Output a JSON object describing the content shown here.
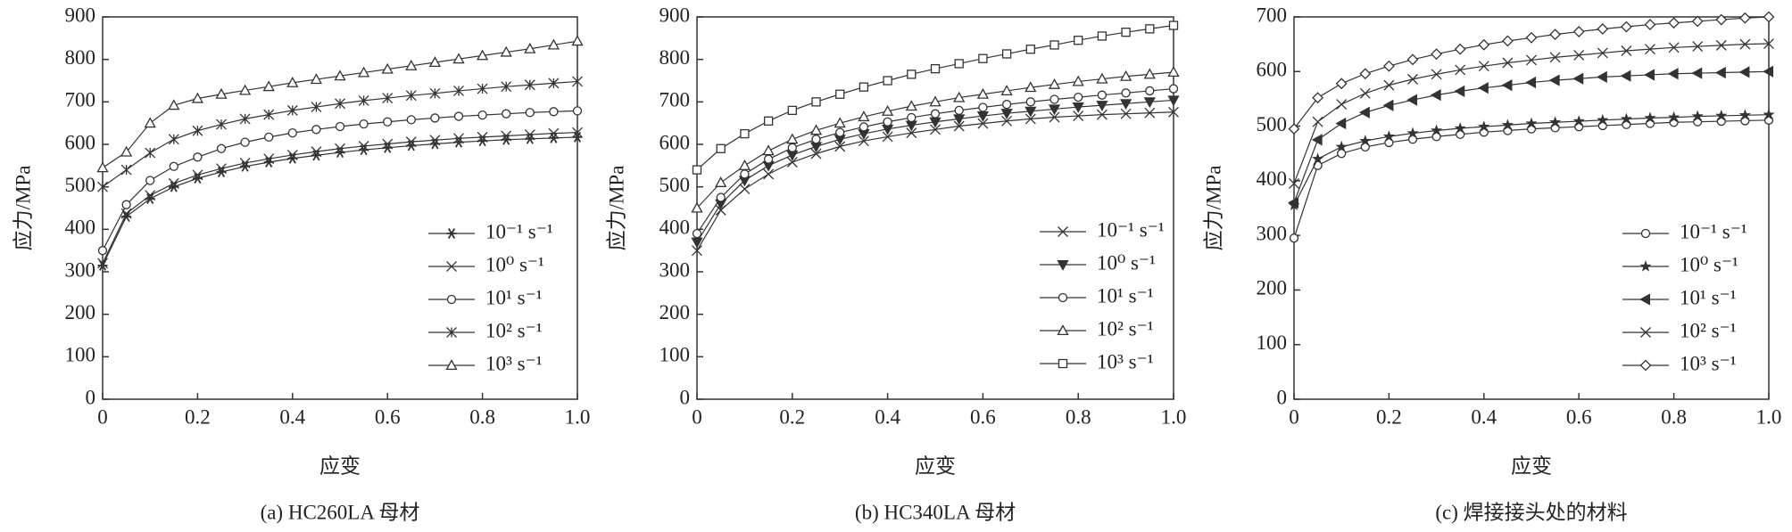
{
  "chart_data": [
    {
      "type": "line",
      "caption": "(a) HC260LA 母材",
      "x_label": "应变",
      "y_label": "应力/MPa",
      "x": [
        0,
        0.05,
        0.1,
        0.15,
        0.2,
        0.25,
        0.3,
        0.35,
        0.4,
        0.45,
        0.5,
        0.55,
        0.6,
        0.65,
        0.7,
        0.75,
        0.8,
        0.85,
        0.9,
        0.95,
        1
      ],
      "xlim": [
        0,
        1
      ],
      "xticks": [
        0,
        0.2,
        0.4,
        0.6,
        0.8,
        {
          "value": 1,
          "label": "1.0"
        }
      ],
      "ylim": [
        0,
        900
      ],
      "yticks": [
        0,
        100,
        200,
        300,
        400,
        500,
        600,
        700,
        800,
        900
      ],
      "series": [
        {
          "name": "10⁻¹ s⁻¹",
          "color": "#333333",
          "marker": "asterisk",
          "values": [
            315,
            430,
            472,
            500,
            520,
            535,
            548,
            558,
            567,
            574,
            581,
            587,
            592,
            597,
            601,
            605,
            608,
            611,
            613,
            615,
            617
          ]
        },
        {
          "name": "10⁰ s⁻¹",
          "color": "#333333",
          "marker": "x",
          "values": [
            320,
            437,
            480,
            508,
            528,
            543,
            556,
            566,
            575,
            583,
            590,
            596,
            601,
            606,
            610,
            614,
            617,
            620,
            623,
            626,
            628
          ]
        },
        {
          "name": "10¹ s⁻¹",
          "color": "#333333",
          "marker": "circle",
          "values": [
            350,
            458,
            515,
            548,
            570,
            590,
            605,
            617,
            627,
            635,
            642,
            648,
            653,
            658,
            662,
            666,
            669,
            672,
            675,
            677,
            679
          ]
        },
        {
          "name": "10² s⁻¹",
          "color": "#333333",
          "marker": "star",
          "values": [
            500,
            540,
            580,
            612,
            632,
            647,
            660,
            670,
            680,
            688,
            696,
            703,
            709,
            715,
            720,
            726,
            731,
            736,
            740,
            744,
            748
          ]
        },
        {
          "name": "10³ s⁻¹",
          "color": "#333333",
          "marker": "triangle",
          "values": [
            545,
            582,
            650,
            692,
            708,
            718,
            727,
            736,
            745,
            753,
            761,
            769,
            777,
            785,
            793,
            801,
            809,
            817,
            825,
            834,
            843
          ]
        }
      ]
    },
    {
      "type": "line",
      "caption": "(b) HC340LA 母材",
      "x_label": "应变",
      "y_label": "应力/MPa",
      "x": [
        0,
        0.05,
        0.1,
        0.15,
        0.2,
        0.25,
        0.3,
        0.35,
        0.4,
        0.45,
        0.5,
        0.55,
        0.6,
        0.65,
        0.7,
        0.75,
        0.8,
        0.85,
        0.9,
        0.95,
        1
      ],
      "xlim": [
        0,
        1
      ],
      "xticks": [
        0,
        0.2,
        0.4,
        0.6,
        0.8,
        {
          "value": 1,
          "label": "1.0"
        }
      ],
      "ylim": [
        0,
        900
      ],
      "yticks": [
        0,
        100,
        200,
        300,
        400,
        500,
        600,
        700,
        800,
        900
      ],
      "series": [
        {
          "name": "10⁻¹ s⁻¹",
          "color": "#333333",
          "marker": "x",
          "values": [
            350,
            445,
            495,
            530,
            558,
            578,
            595,
            608,
            618,
            627,
            635,
            643,
            649,
            655,
            660,
            664,
            667,
            670,
            672,
            674,
            676
          ]
        },
        {
          "name": "10⁰ s⁻¹",
          "color": "#333333",
          "marker": "tri-down",
          "values": [
            370,
            460,
            515,
            550,
            575,
            595,
            612,
            625,
            636,
            645,
            653,
            660,
            667,
            673,
            678,
            683,
            688,
            692,
            696,
            700,
            704
          ]
        },
        {
          "name": "10¹ s⁻¹",
          "color": "#333333",
          "marker": "circle",
          "values": [
            390,
            475,
            530,
            565,
            592,
            612,
            628,
            641,
            653,
            663,
            672,
            680,
            687,
            694,
            700,
            706,
            711,
            716,
            721,
            726,
            731
          ]
        },
        {
          "name": "10² s⁻¹",
          "color": "#333333",
          "marker": "triangle",
          "values": [
            450,
            510,
            550,
            585,
            612,
            633,
            650,
            665,
            678,
            690,
            700,
            710,
            718,
            726,
            734,
            741,
            748,
            754,
            760,
            765,
            770
          ]
        },
        {
          "name": "10³ s⁻¹",
          "color": "#333333",
          "marker": "square",
          "values": [
            540,
            590,
            625,
            655,
            680,
            700,
            718,
            735,
            750,
            765,
            778,
            790,
            802,
            813,
            824,
            834,
            845,
            855,
            864,
            872,
            880
          ]
        }
      ]
    },
    {
      "type": "line",
      "caption": "(c) 焊接接头处的材料",
      "x_label": "应变",
      "y_label": "应力/MPa",
      "x": [
        0,
        0.05,
        0.1,
        0.15,
        0.2,
        0.25,
        0.3,
        0.35,
        0.4,
        0.45,
        0.5,
        0.55,
        0.6,
        0.65,
        0.7,
        0.75,
        0.8,
        0.85,
        0.9,
        0.95,
        1
      ],
      "xlim": [
        0,
        1
      ],
      "xticks": [
        0,
        0.2,
        0.4,
        0.6,
        0.8,
        {
          "value": 1,
          "label": "1.0"
        }
      ],
      "ylim": [
        0,
        700
      ],
      "yticks": [
        0,
        100,
        200,
        300,
        400,
        500,
        600,
        700
      ],
      "series": [
        {
          "name": "10⁻¹ s⁻¹",
          "color": "#333333",
          "marker": "circle",
          "values": [
            295,
            428,
            450,
            462,
            470,
            476,
            481,
            485,
            489,
            492,
            495,
            497,
            499,
            501,
            503,
            505,
            507,
            508,
            509,
            510,
            511
          ]
        },
        {
          "name": "10⁰ s⁻¹",
          "color": "#333333",
          "marker": "star-filled",
          "values": [
            355,
            440,
            462,
            473,
            481,
            487,
            492,
            496,
            499,
            502,
            505,
            507,
            509,
            511,
            513,
            515,
            516,
            518,
            519,
            520,
            521
          ]
        },
        {
          "name": "10¹ s⁻¹",
          "color": "#333333",
          "marker": "tri-left",
          "values": [
            360,
            475,
            505,
            525,
            538,
            548,
            557,
            564,
            570,
            575,
            580,
            584,
            587,
            590,
            592,
            594,
            596,
            597,
            598,
            599,
            600
          ]
        },
        {
          "name": "10² s⁻¹",
          "color": "#333333",
          "marker": "x",
          "values": [
            395,
            508,
            540,
            560,
            575,
            586,
            595,
            603,
            610,
            616,
            621,
            626,
            630,
            634,
            638,
            641,
            644,
            646,
            648,
            650,
            651
          ]
        },
        {
          "name": "10³ s⁻¹",
          "color": "#333333",
          "marker": "diamond",
          "values": [
            495,
            552,
            578,
            596,
            610,
            622,
            632,
            641,
            649,
            656,
            662,
            668,
            673,
            678,
            682,
            686,
            689,
            692,
            695,
            698,
            700
          ]
        }
      ]
    }
  ]
}
